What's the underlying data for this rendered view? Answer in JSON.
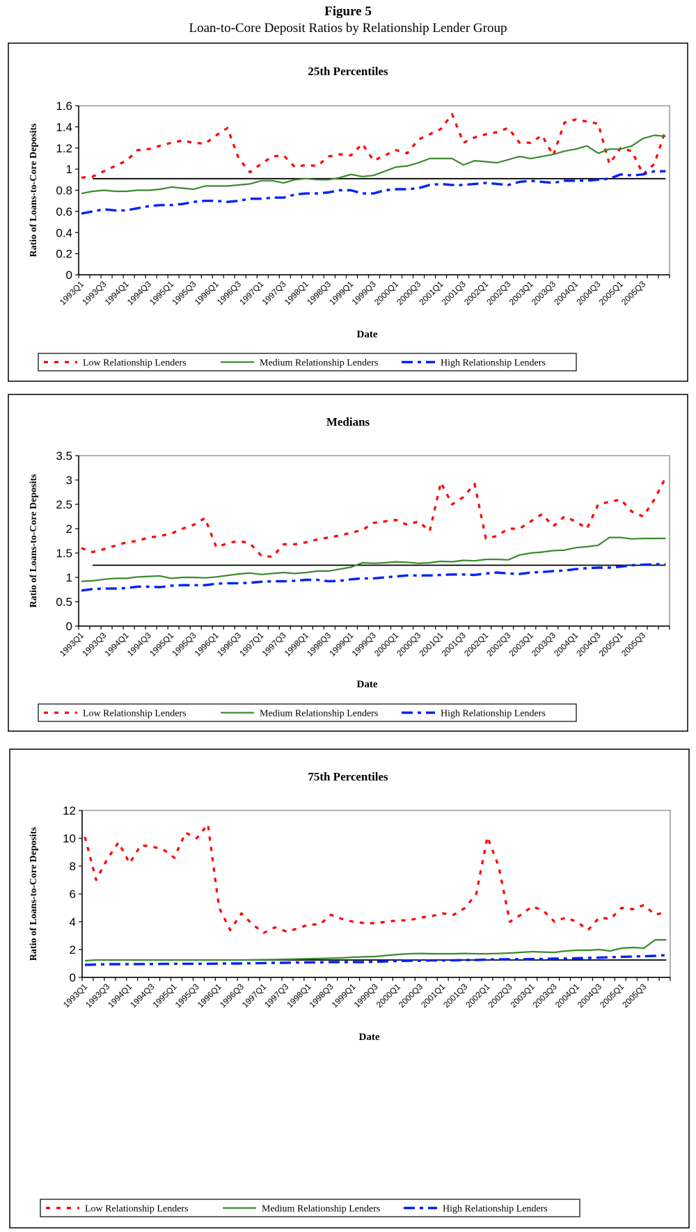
{
  "figure": {
    "title": "Figure 5",
    "subtitle": "Loan-to-Core Deposit Ratios by Relationship Lender Group"
  },
  "colors": {
    "low": "#ff0000",
    "medium": "#3a8a2a",
    "high": "#0022ff",
    "reference": "#000000"
  },
  "chart_data": [
    {
      "type": "line",
      "title": "25th Percentiles",
      "xlabel": "Date",
      "ylabel": "Ratio of Loans-to-Core Deposits",
      "ylim": [
        0,
        1.6
      ],
      "yticks": [
        0,
        0.2,
        0.4,
        0.6,
        0.8,
        1,
        1.2,
        1.4,
        1.6
      ],
      "ytick_labels": [
        "0",
        "0.2",
        "0.4",
        "0.6",
        "0.8",
        "1",
        "1.2",
        "1.4",
        "1.6"
      ],
      "reference_line": 0.91,
      "legend_position": "bottom",
      "series": [
        {
          "name": "Low Relationship Lenders",
          "style": "dashed",
          "values": [
            0.92,
            0.93,
            0.98,
            1.03,
            1.08,
            1.18,
            1.19,
            1.22,
            1.25,
            1.27,
            1.25,
            1.24,
            1.32,
            1.39,
            1.1,
            0.97,
            1.05,
            1.12,
            1.13,
            1.02,
            1.04,
            1.03,
            1.12,
            1.14,
            1.13,
            1.24,
            1.08,
            1.13,
            1.18,
            1.15,
            1.28,
            1.33,
            1.38,
            1.52,
            1.25,
            1.3,
            1.33,
            1.35,
            1.39,
            1.25,
            1.25,
            1.32,
            1.13,
            1.44,
            1.47,
            1.45,
            1.43,
            1.05,
            1.2,
            1.17,
            0.95,
            1.05,
            1.37
          ]
        },
        {
          "name": "Medium Relationship Lenders",
          "style": "solid",
          "values": [
            0.77,
            0.79,
            0.8,
            0.79,
            0.79,
            0.8,
            0.8,
            0.81,
            0.83,
            0.82,
            0.81,
            0.84,
            0.84,
            0.84,
            0.85,
            0.86,
            0.89,
            0.89,
            0.87,
            0.9,
            0.91,
            0.9,
            0.9,
            0.92,
            0.95,
            0.93,
            0.94,
            0.98,
            1.02,
            1.03,
            1.06,
            1.1,
            1.1,
            1.1,
            1.04,
            1.08,
            1.07,
            1.06,
            1.09,
            1.12,
            1.1,
            1.12,
            1.14,
            1.17,
            1.19,
            1.22,
            1.15,
            1.19,
            1.19,
            1.22,
            1.29,
            1.32,
            1.31
          ]
        },
        {
          "name": "High Relationship Lenders",
          "style": "dash-dot",
          "values": [
            0.58,
            0.6,
            0.62,
            0.61,
            0.61,
            0.63,
            0.65,
            0.66,
            0.66,
            0.67,
            0.69,
            0.7,
            0.7,
            0.69,
            0.7,
            0.72,
            0.72,
            0.73,
            0.73,
            0.76,
            0.77,
            0.77,
            0.78,
            0.8,
            0.8,
            0.77,
            0.77,
            0.8,
            0.81,
            0.81,
            0.82,
            0.85,
            0.86,
            0.85,
            0.85,
            0.86,
            0.87,
            0.86,
            0.85,
            0.88,
            0.89,
            0.88,
            0.87,
            0.89,
            0.89,
            0.89,
            0.9,
            0.91,
            0.95,
            0.94,
            0.95,
            0.98,
            0.98
          ]
        }
      ]
    },
    {
      "type": "line",
      "title": "Medians",
      "xlabel": "Date",
      "ylabel": "Ratio of Loans-to-Core Deposits",
      "ylim": [
        0,
        3.5
      ],
      "yticks": [
        0,
        0.5,
        1,
        1.5,
        2,
        2.5,
        3,
        3.5
      ],
      "ytick_labels": [
        "0",
        "0.5",
        "1",
        "1.5",
        "2",
        "2.5",
        "3",
        "3.5"
      ],
      "reference_line": 1.25,
      "legend_position": "bottom",
      "series": [
        {
          "name": "Low Relationship Lenders",
          "style": "dashed",
          "values": [
            1.6,
            1.52,
            1.58,
            1.65,
            1.72,
            1.75,
            1.82,
            1.85,
            1.9,
            2.0,
            2.08,
            2.22,
            1.62,
            1.7,
            1.75,
            1.7,
            1.45,
            1.42,
            1.68,
            1.68,
            1.72,
            1.78,
            1.82,
            1.86,
            1.92,
            1.97,
            2.12,
            2.15,
            2.18,
            2.08,
            2.15,
            1.95,
            2.95,
            2.5,
            2.65,
            2.92,
            1.8,
            1.85,
            2.0,
            2.0,
            2.15,
            2.3,
            2.05,
            2.25,
            2.15,
            2.0,
            2.5,
            2.55,
            2.6,
            2.35,
            2.25,
            2.6,
            3.05
          ]
        },
        {
          "name": "Medium Relationship Lenders",
          "style": "solid",
          "values": [
            0.92,
            0.93,
            0.96,
            0.98,
            0.98,
            1.01,
            1.02,
            1.03,
            0.98,
            1.0,
            1.0,
            0.99,
            1.01,
            1.04,
            1.07,
            1.09,
            1.06,
            1.08,
            1.1,
            1.08,
            1.1,
            1.13,
            1.13,
            1.17,
            1.21,
            1.3,
            1.29,
            1.3,
            1.32,
            1.31,
            1.29,
            1.3,
            1.33,
            1.32,
            1.35,
            1.34,
            1.37,
            1.37,
            1.36,
            1.46,
            1.5,
            1.52,
            1.55,
            1.56,
            1.61,
            1.63,
            1.66,
            1.82,
            1.82,
            1.79,
            1.8,
            1.8,
            1.8
          ]
        },
        {
          "name": "High Relationship Lenders",
          "style": "dash-dot",
          "values": [
            0.73,
            0.76,
            0.77,
            0.77,
            0.78,
            0.81,
            0.81,
            0.8,
            0.83,
            0.84,
            0.84,
            0.84,
            0.87,
            0.88,
            0.88,
            0.89,
            0.91,
            0.92,
            0.92,
            0.93,
            0.95,
            0.95,
            0.92,
            0.93,
            0.96,
            0.98,
            0.98,
            1.0,
            1.02,
            1.04,
            1.04,
            1.04,
            1.05,
            1.06,
            1.06,
            1.05,
            1.08,
            1.1,
            1.08,
            1.07,
            1.1,
            1.11,
            1.13,
            1.14,
            1.17,
            1.19,
            1.2,
            1.2,
            1.22,
            1.25,
            1.26,
            1.27,
            1.27
          ]
        }
      ]
    },
    {
      "type": "line",
      "title": "75th Percentiles",
      "xlabel": "Date",
      "ylabel": "Ratio of Loans-to-Core Deposits",
      "ylim": [
        0,
        12
      ],
      "yticks": [
        0,
        2,
        4,
        6,
        8,
        10,
        12
      ],
      "ytick_labels": [
        "0",
        "2",
        "4",
        "6",
        "8",
        "10",
        "12"
      ],
      "reference_line": 1.25,
      "legend_position": "bottom",
      "series": [
        {
          "name": "Low Relationship Lenders",
          "style": "dashed",
          "values": [
            10.1,
            7.0,
            8.5,
            9.7,
            8.2,
            9.5,
            9.4,
            9.2,
            8.6,
            10.4,
            10.0,
            11.0,
            5.0,
            3.4,
            4.6,
            3.8,
            3.2,
            3.6,
            3.3,
            3.5,
            3.8,
            3.8,
            4.5,
            4.2,
            4.0,
            3.9,
            3.9,
            4.0,
            4.1,
            4.1,
            4.3,
            4.4,
            4.6,
            4.5,
            5.0,
            6.0,
            10.1,
            8.0,
            4.0,
            4.5,
            5.1,
            4.8,
            4.0,
            4.3,
            4.0,
            3.4,
            4.3,
            4.2,
            5.0,
            4.9,
            5.2,
            4.5,
            4.7
          ]
        },
        {
          "name": "Medium Relationship Lenders",
          "style": "solid",
          "values": [
            1.2,
            1.25,
            1.25,
            1.25,
            1.25,
            1.25,
            1.25,
            1.25,
            1.25,
            1.25,
            1.25,
            1.25,
            1.25,
            1.25,
            1.25,
            1.26,
            1.27,
            1.28,
            1.3,
            1.32,
            1.34,
            1.36,
            1.38,
            1.4,
            1.45,
            1.48,
            1.5,
            1.58,
            1.65,
            1.7,
            1.72,
            1.7,
            1.7,
            1.7,
            1.72,
            1.7,
            1.7,
            1.72,
            1.75,
            1.8,
            1.85,
            1.82,
            1.8,
            1.9,
            1.95,
            1.95,
            2.0,
            1.9,
            2.1,
            2.15,
            2.1,
            2.7,
            2.7
          ]
        },
        {
          "name": "High Relationship Lenders",
          "style": "dash-dot",
          "values": [
            0.9,
            0.92,
            0.95,
            0.95,
            0.95,
            0.96,
            0.96,
            0.97,
            0.98,
            0.98,
            0.98,
            0.98,
            0.99,
            1.0,
            1.0,
            1.02,
            1.03,
            1.05,
            1.05,
            1.07,
            1.08,
            1.08,
            1.1,
            1.1,
            1.1,
            1.1,
            1.12,
            1.15,
            1.18,
            1.2,
            1.2,
            1.22,
            1.22,
            1.23,
            1.25,
            1.25,
            1.28,
            1.3,
            1.3,
            1.3,
            1.32,
            1.32,
            1.35,
            1.35,
            1.38,
            1.4,
            1.42,
            1.45,
            1.48,
            1.5,
            1.52,
            1.55,
            1.6
          ]
        }
      ]
    }
  ],
  "categories": [
    "1993Q1",
    "1993Q2",
    "1993Q3",
    "1993Q4",
    "1994Q1",
    "1994Q2",
    "1994Q3",
    "1994Q4",
    "1995Q1",
    "1995Q2",
    "1995Q3",
    "1995Q4",
    "1996Q1",
    "1996Q2",
    "1996Q3",
    "1996Q4",
    "1997Q1",
    "1997Q2",
    "1997Q3",
    "1997Q4",
    "1998Q1",
    "1998Q2",
    "1998Q3",
    "1998Q4",
    "1999Q1",
    "1999Q2",
    "1999Q3",
    "1999Q4",
    "2000Q1",
    "2000Q2",
    "2000Q3",
    "2000Q4",
    "2001Q1",
    "2001Q2",
    "2001Q3",
    "2001Q4",
    "2002Q1",
    "2002Q2",
    "2002Q3",
    "2002Q4",
    "2003Q1",
    "2003Q2",
    "2003Q3",
    "2003Q4",
    "2004Q1",
    "2004Q2",
    "2004Q3",
    "2004Q4",
    "2005Q1",
    "2005Q2",
    "2005Q3",
    "2005Q4",
    "2006Q1"
  ],
  "tick_labels": [
    "1993Q1",
    "1993Q3",
    "1994Q1",
    "1994Q3",
    "1995Q1",
    "1995Q3",
    "1996Q1",
    "1996Q3",
    "1997Q1",
    "1997Q3",
    "1998Q1",
    "1998Q3",
    "1999Q1",
    "1999Q3",
    "2000Q1",
    "2000Q3",
    "2001Q1",
    "2001Q3",
    "2002Q1",
    "2002Q3",
    "2003Q1",
    "2003Q3",
    "2004Q1",
    "2004Q3",
    "2005Q1",
    "2005Q3"
  ]
}
